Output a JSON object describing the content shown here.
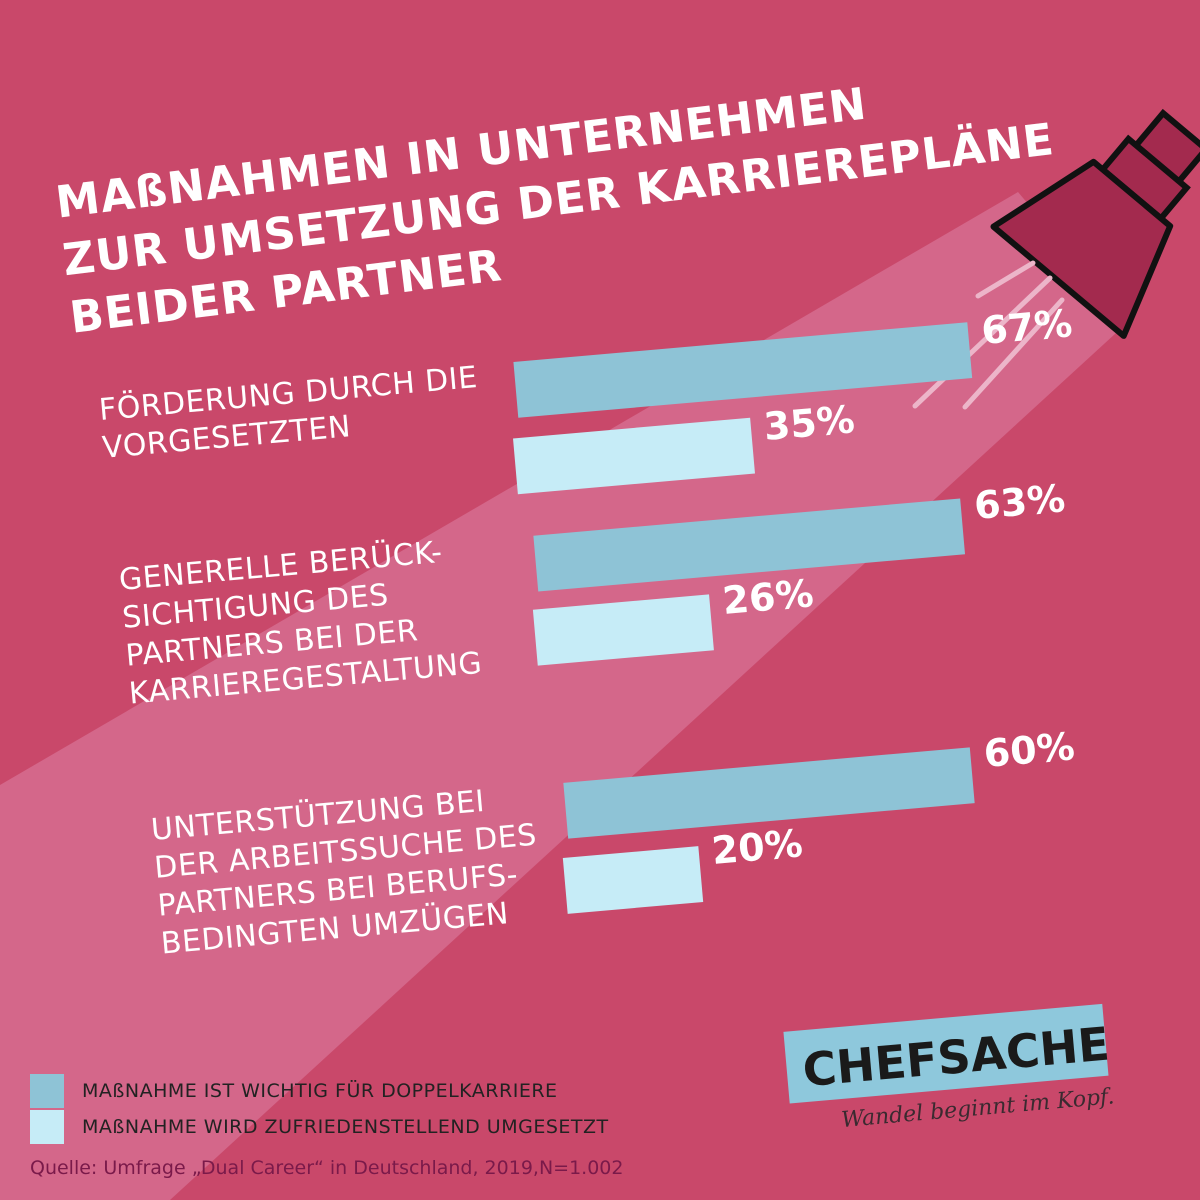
{
  "title_lines": [
    "MAßNAHMEN IN UNTERNEHMEN",
    "ZUR UMSETZUNG DER KARRIEREPLÄNE",
    "BEIDER PARTNER"
  ],
  "colors": {
    "background": "#c9486a",
    "beam": "#d4678a",
    "important": "#8ec3d6",
    "implemented": "#c6ecf7",
    "lamp": "#a32a4e"
  },
  "chart_data": {
    "type": "bar",
    "orientation": "horizontal",
    "categories": [
      [
        "FÖRDERUNG DURCH DIE",
        "VORGESETZTEN"
      ],
      [
        "GENERELLE BERÜCK-",
        "SICHTIGUNG DES",
        "PARTNERS BEI DER",
        "KARRIEREGESTALTUNG"
      ],
      [
        "UNTERSTÜTZUNG BEI",
        "DER ARBEITSSUCHE DES",
        "PARTNERS BEI BERUFS-",
        "BEDINGTEN UMZÜGEN"
      ]
    ],
    "series": [
      {
        "name": "MAßNAHME IST WICHTIG FÜR DOPPELKARRIERE",
        "values": [
          67,
          63,
          60
        ],
        "labels": [
          "67%",
          "63%",
          "60%"
        ]
      },
      {
        "name": "MAßNAHME WIRD ZUFRIEDENSTELLEND UMGESETZT",
        "values": [
          35,
          26,
          20
        ],
        "labels": [
          "35%",
          "26%",
          "20%"
        ]
      }
    ],
    "unit": "%",
    "legend_position": "bottom-left",
    "grid": false
  },
  "source": "Quelle: Umfrage „Dual Career“ in Deutschland, 2019,N=1.002",
  "brand": {
    "name": "CHEFSACHE",
    "slogan": "Wandel beginnt im Kopf.",
    "color": "#8ec8dc"
  }
}
